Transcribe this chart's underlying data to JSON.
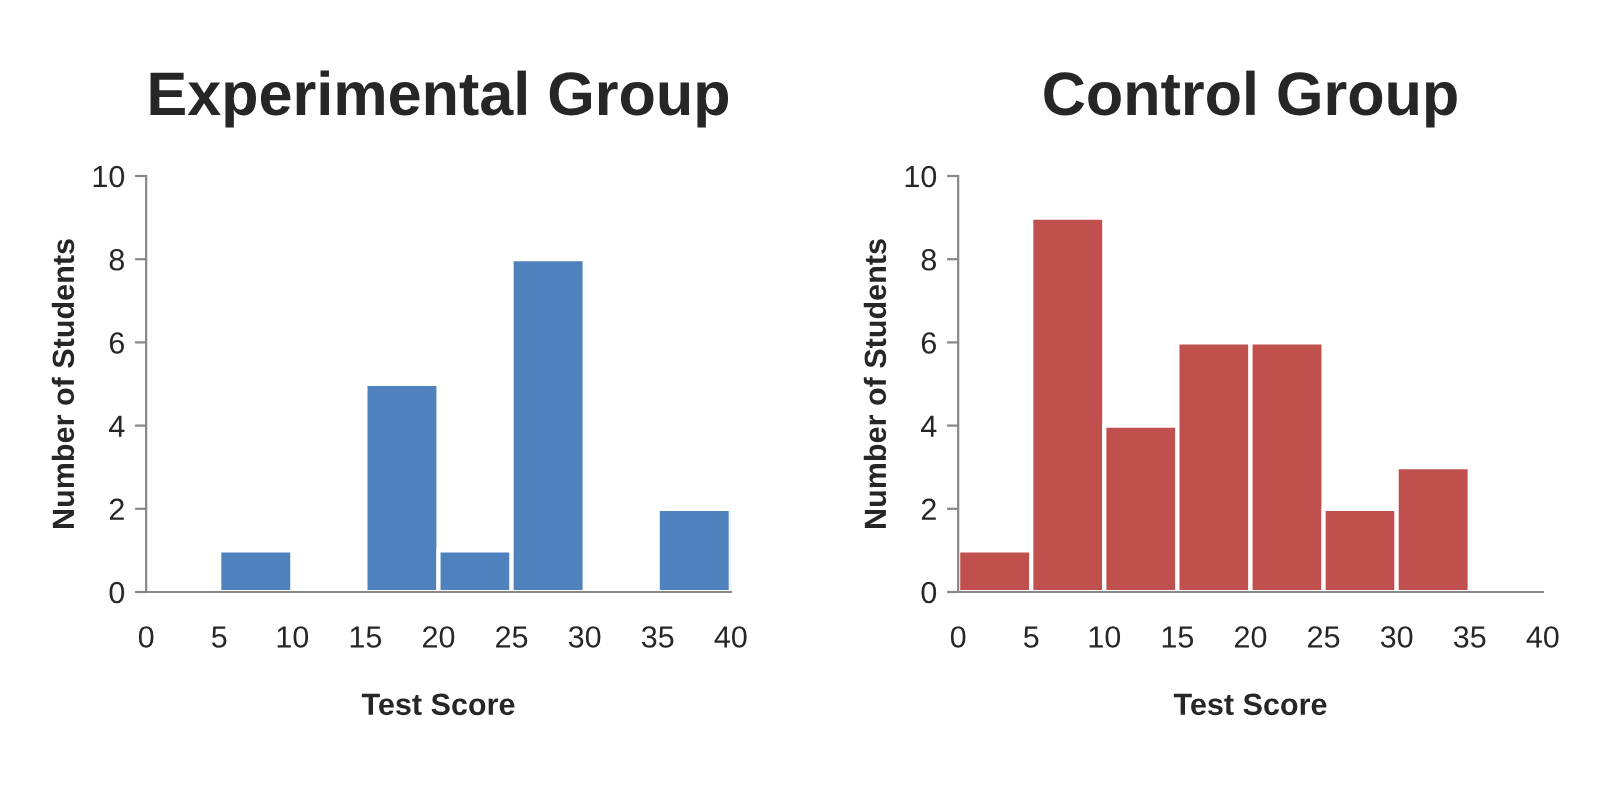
{
  "chart_data": [
    {
      "type": "histogram",
      "title": "Experimental Group",
      "xlabel": "Test Score",
      "ylabel": "Number of Students",
      "bins": [
        0,
        5,
        10,
        15,
        20,
        25,
        30,
        35,
        40
      ],
      "values": [
        0,
        1,
        0,
        5,
        1,
        8,
        0,
        2
      ],
      "color": "#4f81bd",
      "xlim": [
        0,
        40
      ],
      "xticks": [
        0,
        5,
        10,
        15,
        20,
        25,
        30,
        35,
        40
      ],
      "ylim": [
        0,
        10
      ],
      "yticks": [
        0,
        2,
        4,
        6,
        8,
        10
      ],
      "grid": false,
      "legend": false
    },
    {
      "type": "histogram",
      "title": "Control Group",
      "xlabel": "Test Score",
      "ylabel": "Number of Students",
      "bins": [
        0,
        5,
        10,
        15,
        20,
        25,
        30,
        35,
        40
      ],
      "values": [
        1,
        9,
        4,
        6,
        6,
        2,
        3,
        0
      ],
      "color": "#c0504d",
      "xlim": [
        0,
        40
      ],
      "xticks": [
        0,
        5,
        10,
        15,
        20,
        25,
        30,
        35,
        40
      ],
      "ylim": [
        0,
        10
      ],
      "yticks": [
        0,
        2,
        4,
        6,
        8,
        10
      ],
      "grid": false,
      "legend": false
    }
  ]
}
